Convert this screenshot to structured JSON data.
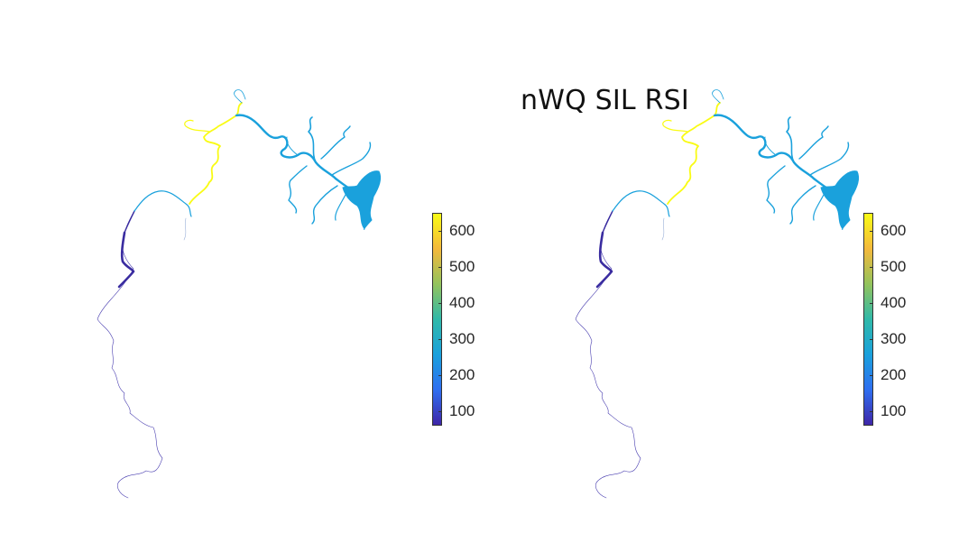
{
  "figure": {
    "title": "nWQ SIL RSI"
  },
  "colormap": {
    "name": "parula",
    "stops": [
      "#3e26a8",
      "#2f6ff0",
      "#1aa1dc",
      "#30b9a9",
      "#93c35c",
      "#f4b93c",
      "#f9fb14"
    ]
  },
  "panels": [
    {
      "name": "left-map",
      "colorbar": {
        "min": 60,
        "max": 650,
        "ticks": [
          "100",
          "200",
          "300",
          "400",
          "500",
          "600"
        ]
      }
    },
    {
      "name": "right-map",
      "colorbar": {
        "min": 60,
        "max": 650,
        "ticks": [
          "100",
          "200",
          "300",
          "400",
          "500",
          "600"
        ]
      }
    }
  ]
}
